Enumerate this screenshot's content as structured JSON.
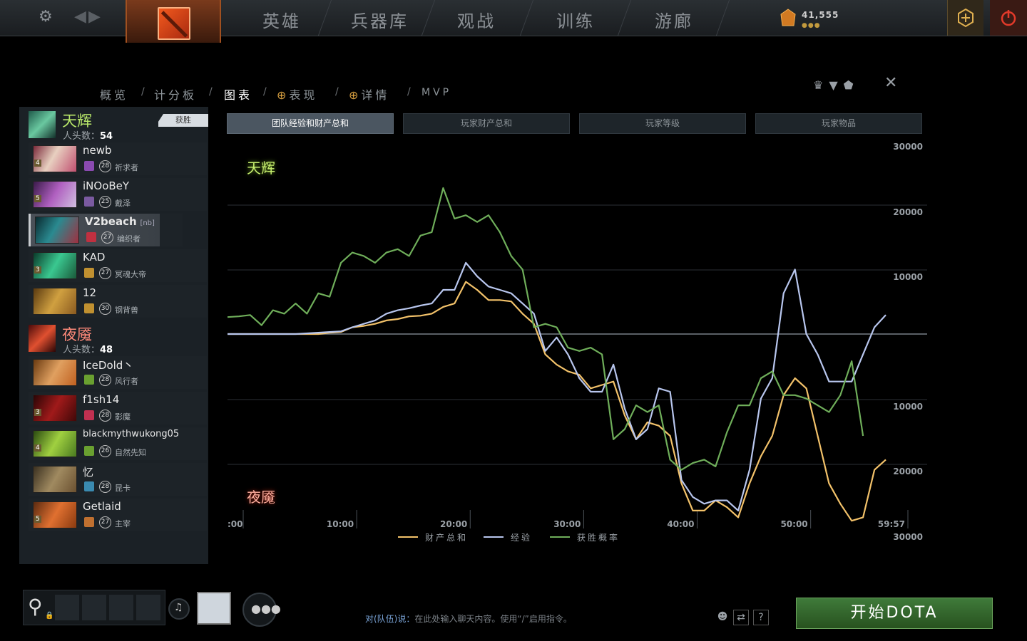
{
  "topnav": {
    "tabs": [
      "英雄",
      "兵器库",
      "观战",
      "训练",
      "游廊"
    ],
    "gold": "41,555",
    "gold_dots": "●●●"
  },
  "subnav": {
    "items": [
      "概览",
      "计分板",
      "图表",
      "表现",
      "详情",
      "MVP"
    ]
  },
  "radiant": {
    "name": "天辉",
    "kills_label": "人头数：",
    "kills": "54",
    "badge": "获胜",
    "players": [
      {
        "name": "newb",
        "tag": "",
        "level": "28",
        "hero": "祈求者",
        "lvl_badge": "4"
      },
      {
        "name": "iNOoBeY",
        "tag": "",
        "level": "25",
        "hero": "戴泽",
        "lvl_badge": "5"
      },
      {
        "name": "V2beach",
        "tag": "[nb]",
        "level": "27",
        "hero": "编织者",
        "lvl_badge": ""
      },
      {
        "name": "KAD",
        "tag": "",
        "level": "27",
        "hero": "冥魂大帝",
        "lvl_badge": "3"
      },
      {
        "name": "12",
        "tag": "",
        "level": "30",
        "hero": "钢背兽",
        "lvl_badge": ""
      }
    ]
  },
  "dire": {
    "name": "夜魇",
    "kills_label": "人头数：",
    "kills": "48",
    "players": [
      {
        "name": "IceDold丶",
        "tag": "",
        "level": "28",
        "hero": "风行者",
        "lvl_badge": ""
      },
      {
        "name": "f1sh14",
        "tag": "",
        "level": "28",
        "hero": "影魔",
        "lvl_badge": "3"
      },
      {
        "name": "blackmythwukong05",
        "tag": "",
        "level": "26",
        "hero": "自然先知",
        "lvl_badge": "4"
      },
      {
        "name": "忆",
        "tag": "",
        "level": "28",
        "hero": "昆卡",
        "lvl_badge": ""
      },
      {
        "name": "Getlaid",
        "tag": "",
        "level": "27",
        "hero": "主宰",
        "lvl_badge": "5"
      }
    ]
  },
  "graph_tabs": [
    "团队经验和财产总和",
    "玩家财产总和",
    "玩家等级",
    "玩家物品"
  ],
  "chart_data": {
    "type": "line",
    "top_label": "天辉",
    "bottom_label": "夜魇",
    "x_ticks": [
      ":00",
      "10:00",
      "20:00",
      "30:00",
      "40:00",
      "50:00",
      "59:57"
    ],
    "xlim": [
      0,
      59.95
    ],
    "y_ticks": [
      "30000",
      "20000",
      "10000",
      "10000",
      "20000",
      "30000"
    ],
    "ylim": [
      -30000,
      30000
    ],
    "legend": [
      "财产总和",
      "经验",
      "获胜概率"
    ],
    "colors": {
      "gold": "#f3c26a",
      "xp": "#b8c6ee",
      "win": "#6fae5a"
    },
    "series": [
      {
        "name": "财产总和",
        "color": "#f3c26a",
        "points": [
          [
            0,
            0
          ],
          [
            5,
            0
          ],
          [
            6,
            0
          ],
          [
            8,
            0
          ],
          [
            9,
            200
          ],
          [
            10,
            300
          ],
          [
            11,
            1000
          ],
          [
            12,
            1200
          ],
          [
            13,
            1500
          ],
          [
            14,
            2000
          ],
          [
            15,
            2200
          ],
          [
            16,
            2600
          ],
          [
            17,
            2700
          ],
          [
            18,
            3000
          ],
          [
            19,
            4000
          ],
          [
            20,
            4500
          ],
          [
            21,
            7700
          ],
          [
            22,
            6500
          ],
          [
            23,
            5000
          ],
          [
            24,
            5000
          ],
          [
            25,
            4800
          ],
          [
            26,
            3000
          ],
          [
            27,
            1500
          ],
          [
            28,
            -3000
          ],
          [
            29,
            -4500
          ],
          [
            30,
            -5500
          ],
          [
            31,
            -6000
          ],
          [
            32,
            -8000
          ],
          [
            33,
            -7500
          ],
          [
            34,
            -7000
          ],
          [
            35,
            -12000
          ],
          [
            36,
            -15500
          ],
          [
            37,
            -13000
          ],
          [
            38,
            -13500
          ],
          [
            39,
            -15000
          ],
          [
            40,
            -22000
          ],
          [
            41,
            -26000
          ],
          [
            42,
            -26000
          ],
          [
            43,
            -24500
          ],
          [
            44,
            -25500
          ],
          [
            45,
            -27000
          ],
          [
            46,
            -22000
          ],
          [
            47,
            -18000
          ],
          [
            48,
            -15000
          ],
          [
            49,
            -9000
          ],
          [
            50,
            -6500
          ],
          [
            51,
            -8000
          ],
          [
            52,
            -15000
          ],
          [
            53,
            -22000
          ],
          [
            54,
            -25000
          ],
          [
            55,
            -27500
          ],
          [
            56,
            -27000
          ],
          [
            57,
            -20000
          ],
          [
            58,
            -18500
          ]
        ]
      },
      {
        "name": "经验",
        "color": "#b8c6ee",
        "points": [
          [
            0,
            0
          ],
          [
            5,
            0
          ],
          [
            6,
            0
          ],
          [
            8,
            200
          ],
          [
            9,
            300
          ],
          [
            10,
            400
          ],
          [
            11,
            1000
          ],
          [
            12,
            1500
          ],
          [
            13,
            2000
          ],
          [
            14,
            3000
          ],
          [
            15,
            3500
          ],
          [
            16,
            3800
          ],
          [
            17,
            4200
          ],
          [
            18,
            4500
          ],
          [
            19,
            6500
          ],
          [
            20,
            6500
          ],
          [
            21,
            10500
          ],
          [
            22,
            8500
          ],
          [
            23,
            7000
          ],
          [
            24,
            6500
          ],
          [
            25,
            6000
          ],
          [
            26,
            4500
          ],
          [
            27,
            3000
          ],
          [
            28,
            -2500
          ],
          [
            29,
            -500
          ],
          [
            30,
            -3000
          ],
          [
            31,
            -6500
          ],
          [
            32,
            -8500
          ],
          [
            33,
            -8500
          ],
          [
            34,
            -4500
          ],
          [
            35,
            -11000
          ],
          [
            36,
            -15500
          ],
          [
            37,
            -14000
          ],
          [
            38,
            -8000
          ],
          [
            39,
            -8500
          ],
          [
            40,
            -21500
          ],
          [
            41,
            -24000
          ],
          [
            42,
            -25000
          ],
          [
            43,
            -24500
          ],
          [
            44,
            -24500
          ],
          [
            45,
            -26000
          ],
          [
            46,
            -20000
          ],
          [
            47,
            -9500
          ],
          [
            48,
            -6500
          ],
          [
            49,
            6000
          ],
          [
            50,
            9500
          ],
          [
            51,
            0
          ],
          [
            52,
            -3000
          ],
          [
            53,
            -7000
          ],
          [
            54,
            -7000
          ],
          [
            55,
            -7000
          ],
          [
            56,
            -3000
          ],
          [
            57,
            1000
          ],
          [
            58,
            2800
          ]
        ]
      },
      {
        "name": "获胜概率",
        "color": "#6fae5a",
        "points": [
          [
            0,
            2500
          ],
          [
            1,
            2600
          ],
          [
            2,
            2800
          ],
          [
            3,
            1300
          ],
          [
            4,
            3500
          ],
          [
            5,
            3000
          ],
          [
            6,
            4500
          ],
          [
            7,
            3000
          ],
          [
            8,
            6000
          ],
          [
            9,
            5500
          ],
          [
            10,
            10500
          ],
          [
            11,
            12000
          ],
          [
            12,
            11500
          ],
          [
            13,
            10500
          ],
          [
            14,
            12000
          ],
          [
            15,
            12500
          ],
          [
            16,
            11500
          ],
          [
            17,
            14500
          ],
          [
            18,
            15000
          ],
          [
            19,
            21500
          ],
          [
            20,
            17000
          ],
          [
            21,
            17500
          ],
          [
            22,
            16500
          ],
          [
            23,
            17500
          ],
          [
            24,
            15000
          ],
          [
            25,
            11500
          ],
          [
            26,
            9500
          ],
          [
            27,
            1000
          ],
          [
            28,
            1500
          ],
          [
            29,
            1000
          ],
          [
            30,
            -2000
          ],
          [
            31,
            -2500
          ],
          [
            32,
            -2000
          ],
          [
            33,
            -3000
          ],
          [
            34,
            -15500
          ],
          [
            35,
            -14000
          ],
          [
            36,
            -10500
          ],
          [
            37,
            -11500
          ],
          [
            38,
            -10500
          ],
          [
            39,
            -18500
          ],
          [
            40,
            -20000
          ],
          [
            41,
            -19000
          ],
          [
            42,
            -18500
          ],
          [
            43,
            -19500
          ],
          [
            44,
            -14500
          ],
          [
            45,
            -10500
          ],
          [
            46,
            -10500
          ],
          [
            47,
            -6500
          ],
          [
            48,
            -5500
          ],
          [
            49,
            -9000
          ],
          [
            50,
            -9000
          ],
          [
            51,
            -9500
          ],
          [
            52,
            -10500
          ],
          [
            53,
            -11500
          ],
          [
            54,
            -9000
          ],
          [
            55,
            -4000
          ],
          [
            56,
            -15000
          ]
        ]
      }
    ]
  },
  "bottombar": {
    "chat_prefix": "对(队伍)说：",
    "chat_placeholder": "在此处输入聊天内容。使用“/”启用指令。",
    "help": "?",
    "start_button": "开始DOTA"
  }
}
